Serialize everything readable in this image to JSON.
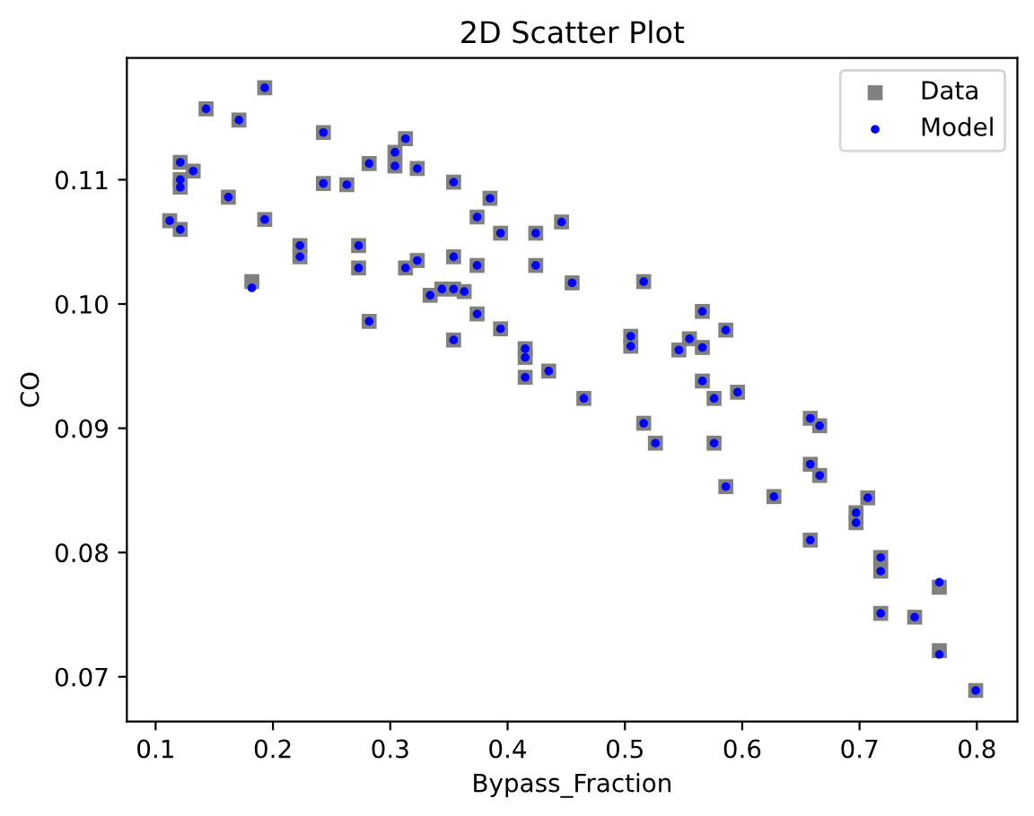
{
  "chart_data": {
    "type": "scatter",
    "title": "2D Scatter Plot",
    "xlabel": "Bypass_Fraction",
    "ylabel": "CO",
    "xlim": [
      0.0755,
      0.8345
    ],
    "ylim": [
      0.0664,
      0.1198
    ],
    "xticks": [
      0.1,
      0.2,
      0.3,
      0.4,
      0.5,
      0.6,
      0.7,
      0.8
    ],
    "yticks": [
      0.07,
      0.08,
      0.09,
      {
        "value": 0.1,
        "label": "0.10"
      },
      0.11
    ],
    "grid": false,
    "legend": "top right",
    "series": [
      {
        "name": "Data",
        "color": "#808080",
        "marker": "square",
        "x": [
          0.112,
          0.121,
          0.121,
          0.121,
          0.121,
          0.132,
          0.143,
          0.162,
          0.171,
          0.182,
          0.193,
          0.193,
          0.223,
          0.223,
          0.243,
          0.243,
          0.263,
          0.273,
          0.273,
          0.282,
          0.282,
          0.304,
          0.304,
          0.313,
          0.313,
          0.323,
          0.323,
          0.334,
          0.344,
          0.354,
          0.354,
          0.354,
          0.354,
          0.363,
          0.374,
          0.374,
          0.374,
          0.385,
          0.394,
          0.394,
          0.415,
          0.415,
          0.415,
          0.424,
          0.424,
          0.435,
          0.446,
          0.455,
          0.516,
          0.566,
          0.586,
          0.505,
          0.505,
          0.555,
          0.546,
          0.566,
          0.465,
          0.566,
          0.576,
          0.596,
          0.516,
          0.526,
          0.576,
          0.586,
          0.627,
          0.658,
          0.666,
          0.658,
          0.666,
          0.658,
          0.697,
          0.697,
          0.707,
          0.718,
          0.718,
          0.718,
          0.747,
          0.768,
          0.768,
          0.799
        ],
        "values": [
          0.1067,
          0.106,
          0.1114,
          0.11,
          0.1094,
          0.1107,
          0.1157,
          0.1086,
          0.1148,
          0.1018,
          0.1174,
          0.1068,
          0.1047,
          0.1038,
          0.1138,
          0.1097,
          0.1096,
          0.1047,
          0.1029,
          0.1113,
          0.0986,
          0.1122,
          0.1111,
          0.1133,
          0.1029,
          0.1109,
          0.1035,
          0.1007,
          0.1012,
          0.1098,
          0.1038,
          0.1012,
          0.0971,
          0.101,
          0.107,
          0.1031,
          0.0992,
          0.1085,
          0.1057,
          0.098,
          0.0964,
          0.0957,
          0.0941,
          0.1057,
          0.1031,
          0.0946,
          0.1066,
          0.1017,
          0.1018,
          0.0994,
          0.0979,
          0.0974,
          0.0966,
          0.0972,
          0.0963,
          0.0965,
          0.0924,
          0.0938,
          0.0924,
          0.0929,
          0.0904,
          0.0888,
          0.0888,
          0.0853,
          0.0845,
          0.0908,
          0.0902,
          0.0871,
          0.0862,
          0.081,
          0.0832,
          0.0824,
          0.0844,
          0.0796,
          0.0785,
          0.0751,
          0.0748,
          0.0772,
          0.0721,
          0.0689
        ]
      },
      {
        "name": "Model",
        "color": "#0000ff",
        "marker": "circle",
        "x": [
          0.112,
          0.121,
          0.121,
          0.121,
          0.121,
          0.132,
          0.143,
          0.162,
          0.171,
          0.182,
          0.193,
          0.193,
          0.223,
          0.223,
          0.243,
          0.243,
          0.263,
          0.273,
          0.273,
          0.282,
          0.282,
          0.304,
          0.304,
          0.313,
          0.313,
          0.323,
          0.323,
          0.334,
          0.344,
          0.354,
          0.354,
          0.354,
          0.354,
          0.363,
          0.374,
          0.374,
          0.374,
          0.385,
          0.394,
          0.394,
          0.415,
          0.415,
          0.415,
          0.424,
          0.424,
          0.435,
          0.446,
          0.455,
          0.516,
          0.566,
          0.586,
          0.505,
          0.505,
          0.555,
          0.546,
          0.566,
          0.465,
          0.566,
          0.576,
          0.596,
          0.516,
          0.526,
          0.576,
          0.586,
          0.627,
          0.658,
          0.666,
          0.658,
          0.666,
          0.658,
          0.697,
          0.697,
          0.707,
          0.718,
          0.718,
          0.718,
          0.747,
          0.768,
          0.768,
          0.799
        ],
        "values": [
          0.1067,
          0.106,
          0.1114,
          0.11,
          0.1094,
          0.1107,
          0.1157,
          0.1086,
          0.1148,
          0.1013,
          0.1174,
          0.1068,
          0.1047,
          0.1038,
          0.1138,
          0.1097,
          0.1096,
          0.1047,
          0.1029,
          0.1113,
          0.0986,
          0.1122,
          0.1111,
          0.1133,
          0.1029,
          0.1109,
          0.1035,
          0.1007,
          0.1012,
          0.1098,
          0.1038,
          0.1012,
          0.0971,
          0.101,
          0.107,
          0.1031,
          0.0992,
          0.1085,
          0.1057,
          0.098,
          0.0964,
          0.0957,
          0.0941,
          0.1057,
          0.1031,
          0.0946,
          0.1066,
          0.1017,
          0.1018,
          0.0994,
          0.0979,
          0.0974,
          0.0966,
          0.0972,
          0.0963,
          0.0965,
          0.0924,
          0.0938,
          0.0924,
          0.0929,
          0.0904,
          0.0888,
          0.0888,
          0.0853,
          0.0845,
          0.0908,
          0.0902,
          0.0871,
          0.0862,
          0.081,
          0.0832,
          0.0824,
          0.0844,
          0.0796,
          0.0785,
          0.0751,
          0.0748,
          0.0776,
          0.0718,
          0.0689
        ]
      }
    ]
  }
}
